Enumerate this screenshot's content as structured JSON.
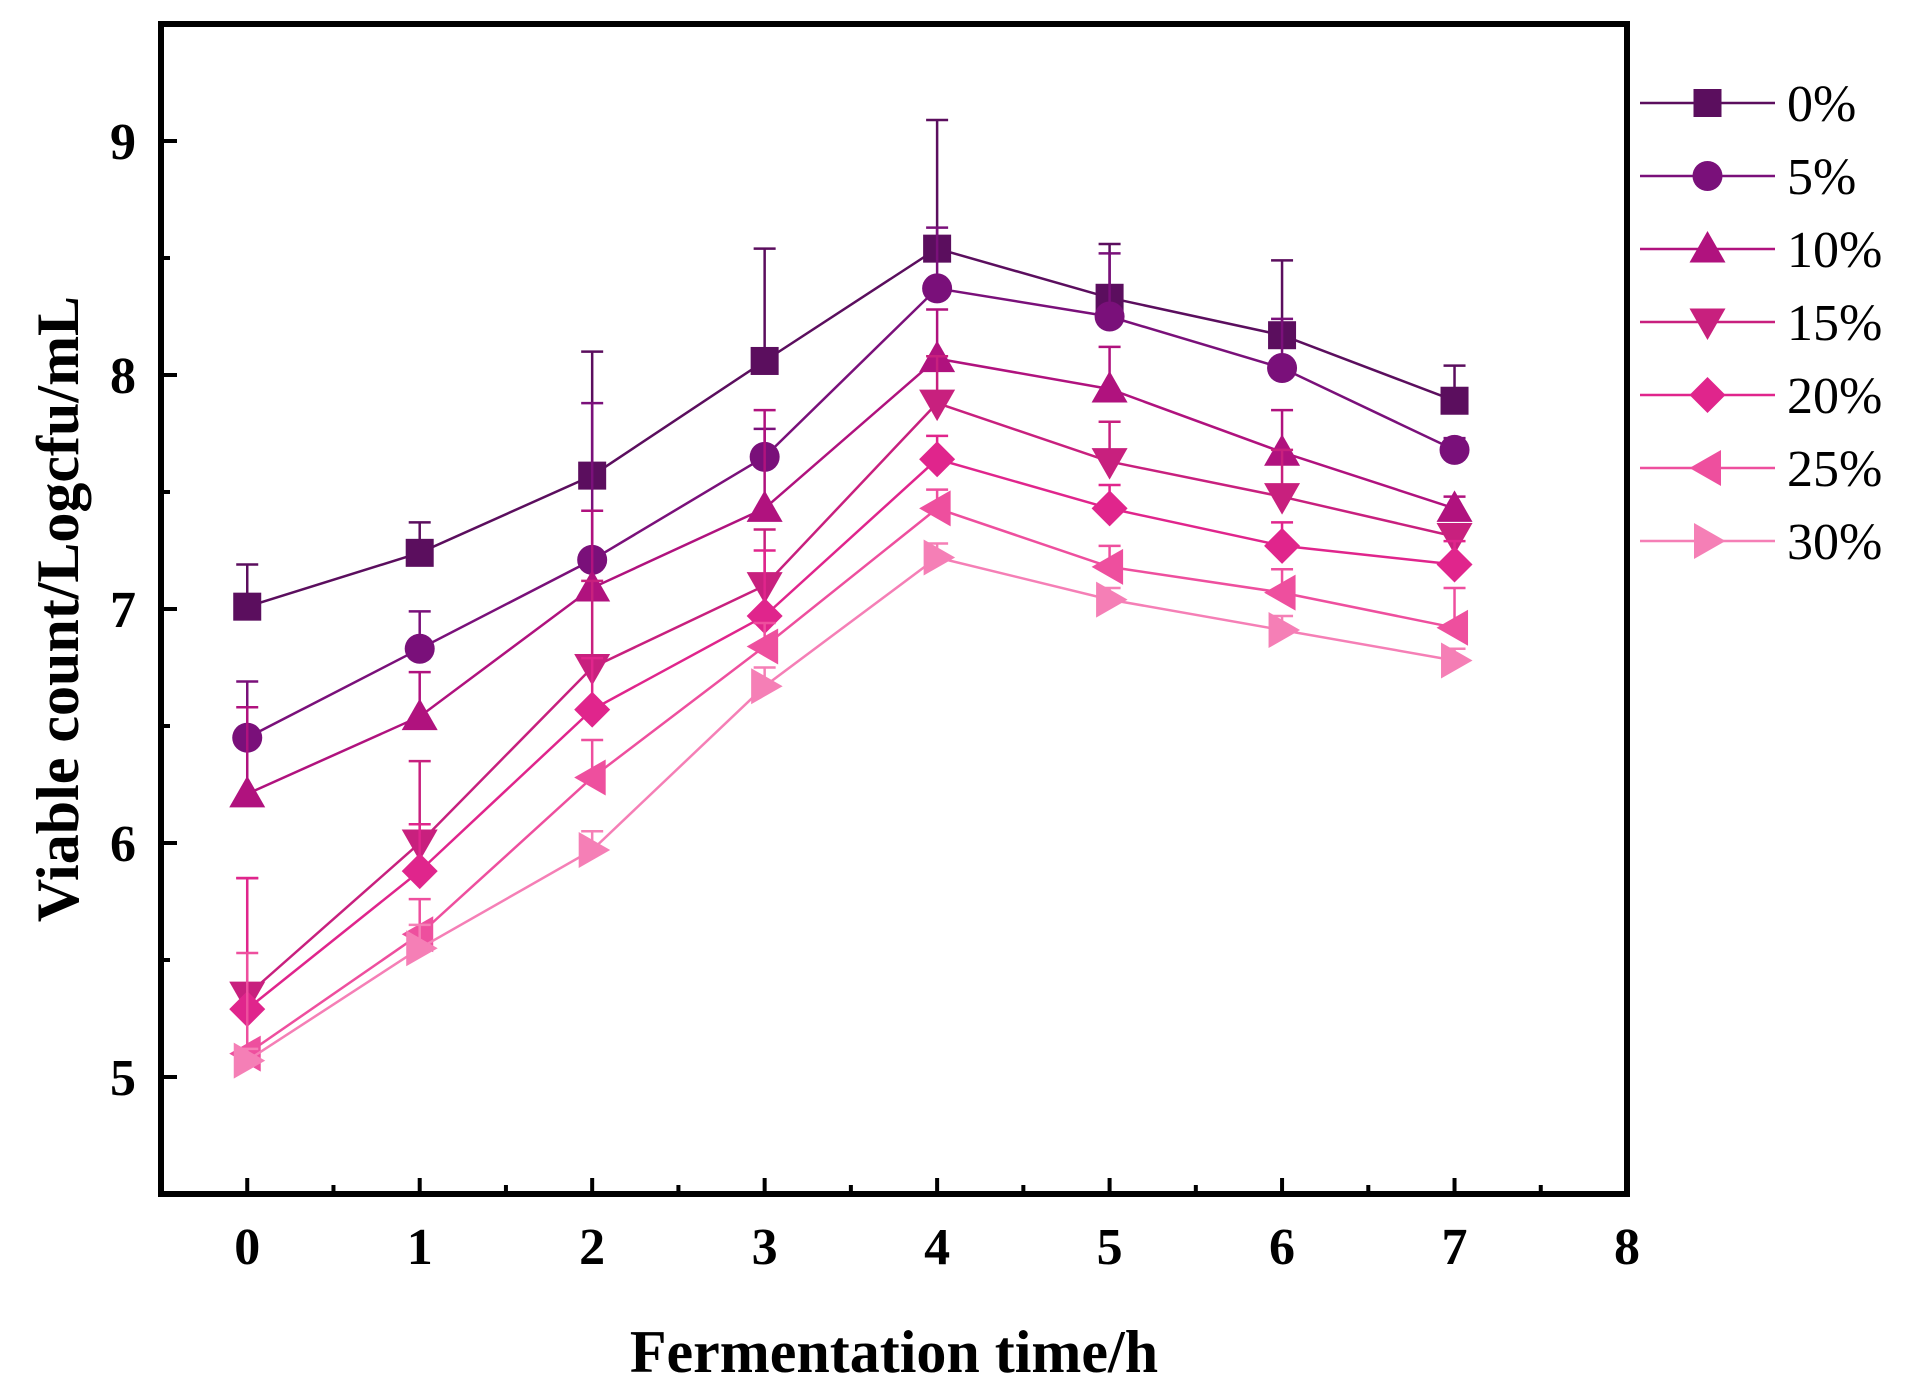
{
  "chart_data": {
    "type": "line",
    "title": "",
    "xlabel": "Fermentation time/h",
    "ylabel": "Viable count/Logcfu/mL",
    "xlim": [
      -0.5,
      8
    ],
    "ylim": [
      4.5,
      9.5
    ],
    "xticks": [
      0,
      1,
      2,
      3,
      4,
      5,
      6,
      7,
      8
    ],
    "yticks": [
      5,
      6,
      7,
      8,
      9
    ],
    "x": [
      0,
      1,
      2,
      3,
      4,
      5,
      6,
      7
    ],
    "legend_position": "right",
    "series": [
      {
        "name": "0%",
        "marker": "square",
        "color": "#5b0e5e",
        "values": [
          7.01,
          7.24,
          7.57,
          8.06,
          8.54,
          8.33,
          8.17,
          7.89
        ],
        "errors": [
          0.18,
          0.13,
          0.53,
          0.48,
          0.55,
          0.23,
          0.32,
          0.15
        ]
      },
      {
        "name": "5%",
        "marker": "circle",
        "color": "#7a107a",
        "values": [
          6.45,
          6.83,
          7.21,
          7.65,
          8.37,
          8.25,
          8.03,
          7.68
        ],
        "errors": [
          0.24,
          0.16,
          0.67,
          0.12,
          0.26,
          0.27,
          0.21,
          0.05
        ]
      },
      {
        "name": "10%",
        "marker": "triangle-up",
        "color": "#b0127e",
        "values": [
          6.21,
          6.54,
          7.09,
          7.43,
          8.07,
          7.94,
          7.67,
          7.43
        ],
        "errors": [
          0.37,
          0.19,
          0.33,
          0.42,
          0.21,
          0.18,
          0.18,
          0.05
        ]
      },
      {
        "name": "15%",
        "marker": "triangle-down",
        "color": "#c8207e",
        "values": [
          5.35,
          6.0,
          6.75,
          7.1,
          7.88,
          7.63,
          7.48,
          7.31
        ],
        "errors": [
          0.5,
          0.35,
          0.37,
          0.24,
          0.2,
          0.17,
          0.2,
          0.05
        ]
      },
      {
        "name": "20%",
        "marker": "diamond",
        "color": "#e0258c",
        "values": [
          5.29,
          5.88,
          6.57,
          6.97,
          7.64,
          7.43,
          7.27,
          7.19
        ],
        "errors": [
          0.56,
          0.2,
          0.22,
          0.28,
          0.1,
          0.1,
          0.1,
          0.1
        ]
      },
      {
        "name": "25%",
        "marker": "triangle-left",
        "color": "#ee4f9e",
        "values": [
          5.1,
          5.61,
          6.28,
          6.84,
          7.43,
          7.18,
          7.07,
          6.92
        ],
        "errors": [
          0.43,
          0.15,
          0.16,
          0.1,
          0.08,
          0.09,
          0.1,
          0.17
        ]
      },
      {
        "name": "30%",
        "marker": "triangle-right",
        "color": "#f57fb6",
        "values": [
          5.07,
          5.55,
          5.97,
          6.67,
          7.22,
          7.04,
          6.91,
          6.78
        ],
        "errors": [
          0.05,
          0.1,
          0.08,
          0.08,
          0.06,
          0.05,
          0.06,
          0.05
        ]
      }
    ]
  }
}
